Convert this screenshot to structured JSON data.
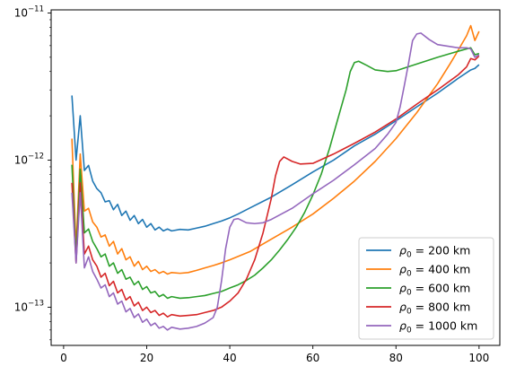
{
  "chart_data": {
    "type": "line",
    "title": "",
    "xlabel": "",
    "ylabel": "",
    "xlim": [
      -3,
      105
    ],
    "ylim": [
      5.5e-14,
      1.05e-11
    ],
    "yscale": "log",
    "grid": false,
    "legend_placement": "lower-right",
    "x_ticks": [
      {
        "value": 0,
        "label": "0"
      },
      {
        "value": 20,
        "label": "20"
      },
      {
        "value": 40,
        "label": "40"
      },
      {
        "value": 60,
        "label": "60"
      },
      {
        "value": 80,
        "label": "80"
      },
      {
        "value": 100,
        "label": "100"
      }
    ],
    "y_ticks": [
      {
        "value": 1e-13,
        "base": "10",
        "exp": "−13"
      },
      {
        "value": 1e-12,
        "base": "10",
        "exp": "−12"
      },
      {
        "value": 1e-11,
        "base": "10",
        "exp": "−11"
      }
    ],
    "series": [
      {
        "label_math": "ρ",
        "label_sub": "0",
        "label_rest": " = 200 km",
        "color": "#1f77b4",
        "points": [
          [
            2,
            2.75e-12
          ],
          [
            3,
            1e-12
          ],
          [
            4,
            2e-12
          ],
          [
            5,
            8.5e-13
          ],
          [
            6,
            9.2e-13
          ],
          [
            7,
            7.2e-13
          ],
          [
            8,
            6.4e-13
          ],
          [
            9,
            6e-13
          ],
          [
            10,
            5.2e-13
          ],
          [
            11,
            5.3e-13
          ],
          [
            12,
            4.6e-13
          ],
          [
            13,
            5e-13
          ],
          [
            14,
            4.2e-13
          ],
          [
            15,
            4.5e-13
          ],
          [
            16,
            3.9e-13
          ],
          [
            17,
            4.2e-13
          ],
          [
            18,
            3.7e-13
          ],
          [
            19,
            3.95e-13
          ],
          [
            20,
            3.5e-13
          ],
          [
            21,
            3.7e-13
          ],
          [
            22,
            3.35e-13
          ],
          [
            23,
            3.5e-13
          ],
          [
            24,
            3.3e-13
          ],
          [
            25,
            3.4e-13
          ],
          [
            26,
            3.3e-13
          ],
          [
            28,
            3.38e-13
          ],
          [
            30,
            3.35e-13
          ],
          [
            32,
            3.45e-13
          ],
          [
            34,
            3.55e-13
          ],
          [
            36,
            3.7e-13
          ],
          [
            38,
            3.85e-13
          ],
          [
            40,
            4.05e-13
          ],
          [
            42,
            4.3e-13
          ],
          [
            45,
            4.75e-13
          ],
          [
            50,
            5.6e-13
          ],
          [
            55,
            6.8e-13
          ],
          [
            60,
            8.3e-13
          ],
          [
            65,
            1e-12
          ],
          [
            70,
            1.25e-12
          ],
          [
            75,
            1.5e-12
          ],
          [
            80,
            1.85e-12
          ],
          [
            85,
            2.3e-12
          ],
          [
            90,
            2.85e-12
          ],
          [
            95,
            3.6e-12
          ],
          [
            98,
            4.1e-12
          ],
          [
            99,
            4.2e-12
          ],
          [
            100,
            4.45e-12
          ]
        ]
      },
      {
        "label_math": "ρ",
        "label_sub": "0",
        "label_rest": " = 400 km",
        "color": "#ff7f0e",
        "points": [
          [
            2,
            1.4e-12
          ],
          [
            3,
            2.5e-13
          ],
          [
            4,
            1.1e-12
          ],
          [
            5,
            4.5e-13
          ],
          [
            6,
            4.7e-13
          ],
          [
            7,
            3.8e-13
          ],
          [
            8,
            3.5e-13
          ],
          [
            9,
            3e-13
          ],
          [
            10,
            3.1e-13
          ],
          [
            11,
            2.6e-13
          ],
          [
            12,
            2.8e-13
          ],
          [
            13,
            2.3e-13
          ],
          [
            14,
            2.5e-13
          ],
          [
            15,
            2.1e-13
          ],
          [
            16,
            2.2e-13
          ],
          [
            17,
            1.9e-13
          ],
          [
            18,
            2.05e-13
          ],
          [
            19,
            1.8e-13
          ],
          [
            20,
            1.9e-13
          ],
          [
            21,
            1.75e-13
          ],
          [
            22,
            1.8e-13
          ],
          [
            23,
            1.7e-13
          ],
          [
            24,
            1.75e-13
          ],
          [
            25,
            1.68e-13
          ],
          [
            26,
            1.72e-13
          ],
          [
            28,
            1.7e-13
          ],
          [
            30,
            1.72e-13
          ],
          [
            32,
            1.78e-13
          ],
          [
            34,
            1.85e-13
          ],
          [
            36,
            1.92e-13
          ],
          [
            38,
            2e-13
          ],
          [
            40,
            2.1e-13
          ],
          [
            45,
            2.4e-13
          ],
          [
            50,
            2.9e-13
          ],
          [
            55,
            3.5e-13
          ],
          [
            60,
            4.3e-13
          ],
          [
            65,
            5.5e-13
          ],
          [
            70,
            7.2e-13
          ],
          [
            75,
            9.8e-13
          ],
          [
            80,
            1.4e-12
          ],
          [
            85,
            2.1e-12
          ],
          [
            90,
            3.3e-12
          ],
          [
            93,
            4.5e-12
          ],
          [
            95,
            5.6e-12
          ],
          [
            97,
            7e-12
          ],
          [
            98,
            8.2e-12
          ],
          [
            99,
            6.5e-12
          ],
          [
            100,
            7.5e-12
          ]
        ]
      },
      {
        "label_math": "ρ",
        "label_sub": "0",
        "label_rest": " = 600 km",
        "color": "#2ca02c",
        "points": [
          [
            2,
            9.3e-13
          ],
          [
            3,
            2.2e-13
          ],
          [
            4,
            8.7e-13
          ],
          [
            5,
            3.2e-13
          ],
          [
            6,
            3.4e-13
          ],
          [
            7,
            2.8e-13
          ],
          [
            8,
            2.5e-13
          ],
          [
            9,
            2.2e-13
          ],
          [
            10,
            2.3e-13
          ],
          [
            11,
            1.9e-13
          ],
          [
            12,
            2e-13
          ],
          [
            13,
            1.7e-13
          ],
          [
            14,
            1.8e-13
          ],
          [
            15,
            1.55e-13
          ],
          [
            16,
            1.6e-13
          ],
          [
            17,
            1.42e-13
          ],
          [
            18,
            1.5e-13
          ],
          [
            19,
            1.32e-13
          ],
          [
            20,
            1.38e-13
          ],
          [
            21,
            1.25e-13
          ],
          [
            22,
            1.28e-13
          ],
          [
            23,
            1.18e-13
          ],
          [
            24,
            1.22e-13
          ],
          [
            25,
            1.15e-13
          ],
          [
            26,
            1.18e-13
          ],
          [
            28,
            1.15e-13
          ],
          [
            30,
            1.16e-13
          ],
          [
            32,
            1.18e-13
          ],
          [
            34,
            1.2e-13
          ],
          [
            36,
            1.24e-13
          ],
          [
            38,
            1.28e-13
          ],
          [
            40,
            1.35e-13
          ],
          [
            42,
            1.42e-13
          ],
          [
            44,
            1.52e-13
          ],
          [
            46,
            1.65e-13
          ],
          [
            48,
            1.85e-13
          ],
          [
            50,
            2.1e-13
          ],
          [
            52,
            2.45e-13
          ],
          [
            54,
            2.9e-13
          ],
          [
            56,
            3.5e-13
          ],
          [
            58,
            4.4e-13
          ],
          [
            60,
            5.8e-13
          ],
          [
            62,
            8e-13
          ],
          [
            64,
            1.2e-12
          ],
          [
            66,
            1.9e-12
          ],
          [
            68,
            3e-12
          ],
          [
            69,
            4e-12
          ],
          [
            70,
            4.6e-12
          ],
          [
            71,
            4.7e-12
          ],
          [
            73,
            4.4e-12
          ],
          [
            75,
            4.1e-12
          ],
          [
            78,
            4e-12
          ],
          [
            80,
            4.05e-12
          ],
          [
            85,
            4.5e-12
          ],
          [
            90,
            5e-12
          ],
          [
            95,
            5.5e-12
          ],
          [
            98,
            5.8e-12
          ],
          [
            99,
            5.2e-12
          ],
          [
            100,
            5.3e-12
          ]
        ]
      },
      {
        "label_math": "ρ",
        "label_sub": "0",
        "label_rest": " = 800 km",
        "color": "#d62728",
        "points": [
          [
            2,
            7e-13
          ],
          [
            3,
            2e-13
          ],
          [
            4,
            7e-13
          ],
          [
            5,
            2.3e-13
          ],
          [
            6,
            2.6e-13
          ],
          [
            7,
            2.1e-13
          ],
          [
            8,
            1.9e-13
          ],
          [
            9,
            1.6e-13
          ],
          [
            10,
            1.7e-13
          ],
          [
            11,
            1.4e-13
          ],
          [
            12,
            1.5e-13
          ],
          [
            13,
            1.25e-13
          ],
          [
            14,
            1.32e-13
          ],
          [
            15,
            1.12e-13
          ],
          [
            16,
            1.18e-13
          ],
          [
            17,
            1.02e-13
          ],
          [
            18,
            1.08e-13
          ],
          [
            19,
            9.5e-14
          ],
          [
            20,
            1e-13
          ],
          [
            21,
            9.2e-14
          ],
          [
            22,
            9.5e-14
          ],
          [
            23,
            8.8e-14
          ],
          [
            24,
            9.1e-14
          ],
          [
            25,
            8.6e-14
          ],
          [
            26,
            8.9e-14
          ],
          [
            28,
            8.7e-14
          ],
          [
            30,
            8.8e-14
          ],
          [
            32,
            8.9e-14
          ],
          [
            34,
            9.2e-14
          ],
          [
            36,
            9.5e-14
          ],
          [
            38,
            1e-13
          ],
          [
            40,
            1.1e-13
          ],
          [
            42,
            1.25e-13
          ],
          [
            44,
            1.55e-13
          ],
          [
            46,
            2.1e-13
          ],
          [
            48,
            3.2e-13
          ],
          [
            50,
            5.5e-13
          ],
          [
            51,
            7.8e-13
          ],
          [
            52,
            9.8e-13
          ],
          [
            53,
            1.05e-12
          ],
          [
            55,
            9.8e-13
          ],
          [
            57,
            9.4e-13
          ],
          [
            60,
            9.5e-13
          ],
          [
            65,
            1.1e-12
          ],
          [
            70,
            1.3e-12
          ],
          [
            75,
            1.55e-12
          ],
          [
            80,
            1.9e-12
          ],
          [
            85,
            2.4e-12
          ],
          [
            90,
            3e-12
          ],
          [
            95,
            3.8e-12
          ],
          [
            97,
            4.3e-12
          ],
          [
            98,
            4.9e-12
          ],
          [
            99,
            4.8e-12
          ],
          [
            100,
            5.1e-12
          ]
        ]
      },
      {
        "label_math": "ρ",
        "label_sub": "0",
        "label_rest": " = 1000 km",
        "color": "#9467bd",
        "points": [
          [
            2,
            6e-13
          ],
          [
            3,
            2e-13
          ],
          [
            4,
            6e-13
          ],
          [
            5,
            1.85e-13
          ],
          [
            6,
            2.2e-13
          ],
          [
            7,
            1.75e-13
          ],
          [
            8,
            1.55e-13
          ],
          [
            9,
            1.35e-13
          ],
          [
            10,
            1.42e-13
          ],
          [
            11,
            1.18e-13
          ],
          [
            12,
            1.25e-13
          ],
          [
            13,
            1.05e-13
          ],
          [
            14,
            1.1e-13
          ],
          [
            15,
            9.3e-14
          ],
          [
            16,
            9.8e-14
          ],
          [
            17,
            8.5e-14
          ],
          [
            18,
            9e-14
          ],
          [
            19,
            7.9e-14
          ],
          [
            20,
            8.3e-14
          ],
          [
            21,
            7.5e-14
          ],
          [
            22,
            7.8e-14
          ],
          [
            23,
            7.2e-14
          ],
          [
            24,
            7.4e-14
          ],
          [
            25,
            7e-14
          ],
          [
            26,
            7.3e-14
          ],
          [
            28,
            7.1e-14
          ],
          [
            30,
            7.2e-14
          ],
          [
            32,
            7.4e-14
          ],
          [
            34,
            7.8e-14
          ],
          [
            36,
            8.5e-14
          ],
          [
            37,
            1e-13
          ],
          [
            38,
            1.5e-13
          ],
          [
            39,
            2.5e-13
          ],
          [
            40,
            3.5e-13
          ],
          [
            41,
            3.95e-13
          ],
          [
            42,
            4e-13
          ],
          [
            44,
            3.75e-13
          ],
          [
            46,
            3.7e-13
          ],
          [
            48,
            3.75e-13
          ],
          [
            50,
            3.95e-13
          ],
          [
            55,
            4.7e-13
          ],
          [
            60,
            5.9e-13
          ],
          [
            65,
            7.3e-13
          ],
          [
            70,
            9.3e-13
          ],
          [
            75,
            1.2e-12
          ],
          [
            78,
            1.5e-12
          ],
          [
            80,
            1.8e-12
          ],
          [
            81,
            2.3e-12
          ],
          [
            82,
            3.2e-12
          ],
          [
            83,
            4.5e-12
          ],
          [
            84,
            6.5e-12
          ],
          [
            85,
            7.2e-12
          ],
          [
            86,
            7.3e-12
          ],
          [
            88,
            6.6e-12
          ],
          [
            90,
            6.1e-12
          ],
          [
            95,
            5.8e-12
          ],
          [
            97,
            5.8e-12
          ],
          [
            98,
            5.7e-12
          ],
          [
            99,
            5e-12
          ],
          [
            100,
            5.2e-12
          ]
        ]
      }
    ]
  }
}
